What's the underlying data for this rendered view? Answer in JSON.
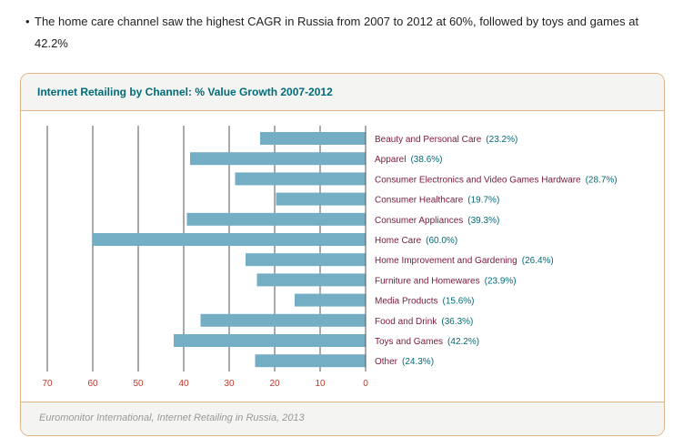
{
  "intro": {
    "bullet": "•",
    "text": "The home care channel saw the highest CAGR in Russia from 2007 to 2012 at 60%, followed by toys and games at 42.2%"
  },
  "card": {
    "title": "Internet Retailing by Channel: % Value Growth 2007-2012",
    "source": "Euromonitor International, Internet Retailing in Russia, 2013"
  },
  "chart_data": {
    "type": "bar",
    "orientation": "horizontal",
    "x_direction": "reversed",
    "title": "Internet Retailing by Channel: % Value Growth 2007-2012",
    "categories": [
      "Beauty and Personal Care",
      "Apparel",
      "Consumer Electronics and Video Games Hardware",
      "Consumer Healthcare",
      "Consumer Appliances",
      "Home Care",
      "Home Improvement and Gardening",
      "Furniture and Homewares",
      "Media Products",
      "Food and Drink",
      "Toys and Games",
      "Other"
    ],
    "values": [
      23.2,
      38.6,
      28.7,
      19.7,
      39.3,
      60.0,
      26.4,
      23.9,
      15.6,
      36.3,
      42.2,
      24.3
    ],
    "value_labels": [
      "(23.2%)",
      "(38.6%)",
      "(28.7%)",
      "(19.7%)",
      "(39.3%)",
      "(60.0%)",
      "(26.4%)",
      "(23.9%)",
      "(15.6%)",
      "(36.3%)",
      "(42.2%)",
      "(24.3%)"
    ],
    "xlim": [
      0,
      70
    ],
    "xticks": [
      70,
      60,
      50,
      40,
      30,
      20,
      10,
      0
    ],
    "grid": true,
    "colors": {
      "bar": "#74aec5",
      "category_text": "#7a1a3a",
      "value_text": "#006b7a",
      "tick_text": "#c0392b",
      "grid": "#555555",
      "border": "#e2b48a"
    }
  }
}
